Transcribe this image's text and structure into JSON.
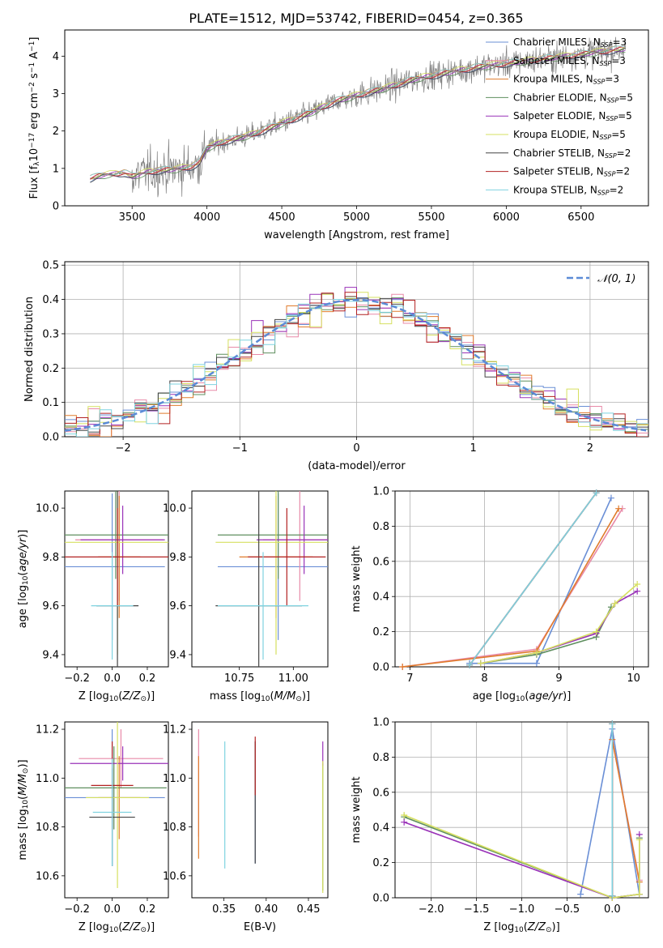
{
  "figure": {
    "title": "PLATE=1512, MJD=53742, FIBERID=0454, z=0.365"
  },
  "colors": {
    "Chabrier MILES": "#6a8fd6",
    "Salpeter MILES": "#e88aa8",
    "Kroupa MILES": "#e07b2c",
    "Chabrier ELODIE": "#5f8f5f",
    "Salpeter ELODIE": "#9932b8",
    "Kroupa ELODIE": "#d6e060",
    "Chabrier STELIB": "#444444",
    "Salpeter STELIB": "#b22222",
    "Kroupa STELIB": "#7fd3e0"
  },
  "chart_data": [
    {
      "id": "spectrum",
      "type": "line",
      "xlabel": "wavelength [Angstrom, rest frame]",
      "ylabel": "Flux [f_λ 10^-17 erg cm^-2 s^-1 A^-1]",
      "xlim": [
        3050,
        6950
      ],
      "ylim": [
        0,
        4.7
      ],
      "xticks": [
        3500,
        4000,
        4500,
        5000,
        5500,
        6000,
        6500
      ],
      "yticks": [
        0,
        1,
        2,
        3,
        4
      ],
      "grid": false,
      "legend_position": "right",
      "data_series": {
        "name": "data",
        "color": "#808080"
      },
      "model_anchors": {
        "x": [
          3220,
          3300,
          3450,
          3500,
          3600,
          3700,
          3800,
          3900,
          3950,
          4000,
          4100,
          4300,
          4500,
          4700,
          4862,
          5000,
          5200,
          5400,
          5600,
          5800,
          6000,
          6200,
          6400,
          6600,
          6800
        ],
        "y": [
          0.72,
          0.82,
          0.88,
          0.78,
          0.9,
          0.95,
          0.98,
          1.05,
          1.15,
          1.55,
          1.7,
          1.9,
          2.2,
          2.5,
          2.8,
          2.95,
          3.15,
          3.4,
          3.55,
          3.7,
          3.8,
          3.9,
          4.0,
          4.1,
          4.2
        ]
      },
      "series": [
        {
          "name": "Chabrier MILES, N_SSP=3",
          "label_main": "Chabrier MILES, N",
          "label_sub": "SSP",
          "label_end": "=3"
        },
        {
          "name": "Salpeter MILES, N_SSP=3",
          "label_main": "Salpeter MILES, N",
          "label_sub": "SSP",
          "label_end": "=3"
        },
        {
          "name": "Kroupa MILES, N_SSP=3",
          "label_main": "Kroupa MILES, N",
          "label_sub": "SSP",
          "label_end": "=3"
        },
        {
          "name": "Chabrier ELODIE, N_SSP=5",
          "label_main": "Chabrier ELODIE, N",
          "label_sub": "SSP",
          "label_end": "=5"
        },
        {
          "name": "Salpeter ELODIE, N_SSP=5",
          "label_main": "Salpeter ELODIE, N",
          "label_sub": "SSP",
          "label_end": "=5"
        },
        {
          "name": "Kroupa ELODIE, N_SSP=5",
          "label_main": "Kroupa ELODIE, N",
          "label_sub": "SSP",
          "label_end": "=5"
        },
        {
          "name": "Chabrier STELIB, N_SSP=2",
          "label_main": "Chabrier STELIB, N",
          "label_sub": "SSP",
          "label_end": "=2"
        },
        {
          "name": "Salpeter STELIB, N_SSP=2",
          "label_main": "Salpeter STELIB, N",
          "label_sub": "SSP",
          "label_end": "=2"
        },
        {
          "name": "Kroupa STELIB, N_SSP=2",
          "label_main": "Kroupa STELIB, N",
          "label_sub": "SSP",
          "label_end": "=2"
        }
      ]
    },
    {
      "id": "residuals",
      "type": "line",
      "xlabel": "(data-model)/error",
      "ylabel": "Normed distribution",
      "xlim": [
        -2.5,
        2.5
      ],
      "ylim": [
        0,
        0.51
      ],
      "xticks": [
        -2,
        -1,
        0,
        1,
        2
      ],
      "yticks": [
        0.0,
        0.1,
        0.2,
        0.3,
        0.4,
        0.5
      ],
      "grid": true,
      "legend_position": "top-right",
      "reference": {
        "name": "𝒩(0, 1)",
        "color": "#5b8bd6",
        "dashed": true
      }
    },
    {
      "id": "age_vs_Z",
      "type": "scatter",
      "xlabel": "Z [log10(Z/Z⊙)]",
      "ylabel": "age  [log10(age/yr)]",
      "xlim": [
        -0.27,
        0.32
      ],
      "ylim": [
        9.35,
        10.07
      ],
      "xticks": [
        -0.2,
        0.0,
        0.2
      ],
      "yticks": [
        9.4,
        9.6,
        9.8,
        10.0
      ],
      "errorbars": [
        {
          "model": "Chabrier MILES",
          "x": 0.0,
          "y": 9.76,
          "xerr": 0.3,
          "yerr": 0.3
        },
        {
          "model": "Salpeter MILES",
          "x": 0.04,
          "y": 9.87,
          "xerr": 0.25,
          "yerr": 0.25
        },
        {
          "model": "Kroupa MILES",
          "x": 0.04,
          "y": 9.8,
          "xerr": 0.12,
          "yerr": 0.25
        },
        {
          "model": "Chabrier ELODIE",
          "x": 0.02,
          "y": 9.89,
          "xerr": 0.3,
          "yerr": 0.18
        },
        {
          "model": "Salpeter ELODIE",
          "x": 0.06,
          "y": 9.87,
          "xerr": 0.24,
          "yerr": 0.14
        },
        {
          "model": "Kroupa ELODIE",
          "x": 0.03,
          "y": 9.86,
          "xerr": 0.3,
          "yerr": 0.46
        },
        {
          "model": "Chabrier STELIB",
          "x": 0.03,
          "y": 9.6,
          "xerr": 0.12,
          "yerr": 0.47
        },
        {
          "model": "Salpeter STELIB",
          "x": 0.03,
          "y": 9.8,
          "xerr": 0.3,
          "yerr": 0.2
        },
        {
          "model": "Kroupa STELIB",
          "x": 0.0,
          "y": 9.6,
          "xerr": 0.12,
          "yerr": 0.22
        }
      ]
    },
    {
      "id": "age_vs_mass",
      "type": "scatter",
      "xlabel": "mass [log10(M/M⊙)]",
      "ylabel": "",
      "xlim": [
        10.53,
        11.16
      ],
      "ylim": [
        9.35,
        10.07
      ],
      "xticks": [
        10.75,
        11.0
      ],
      "yticks": [
        9.4,
        9.6,
        9.8,
        10.0
      ],
      "errorbars": [
        {
          "model": "Chabrier MILES",
          "x": 10.93,
          "y": 9.76,
          "xerr": 0.28,
          "yerr": 0.3
        },
        {
          "model": "Salpeter MILES",
          "x": 11.03,
          "y": 9.87,
          "xerr": 0.17,
          "yerr": 0.25
        },
        {
          "model": "Kroupa MILES",
          "x": 10.92,
          "y": 9.8,
          "xerr": 0.17,
          "yerr": 0.25
        },
        {
          "model": "Chabrier ELODIE",
          "x": 10.93,
          "y": 9.89,
          "xerr": 0.28,
          "yerr": 0.18
        },
        {
          "model": "Salpeter ELODIE",
          "x": 11.05,
          "y": 9.87,
          "xerr": 0.22,
          "yerr": 0.14
        },
        {
          "model": "Kroupa ELODIE",
          "x": 10.92,
          "y": 9.86,
          "xerr": 0.28,
          "yerr": 0.46
        },
        {
          "model": "Chabrier STELIB",
          "x": 10.84,
          "y": 9.6,
          "xerr": 0.2,
          "yerr": 0.47
        },
        {
          "model": "Salpeter STELIB",
          "x": 10.97,
          "y": 9.8,
          "xerr": 0.18,
          "yerr": 0.2
        },
        {
          "model": "Kroupa STELIB",
          "x": 10.86,
          "y": 9.6,
          "xerr": 0.21,
          "yerr": 0.22
        }
      ]
    },
    {
      "id": "weight_vs_age",
      "type": "line",
      "xlabel": "age  [log10(age/yr)]",
      "ylabel": "mass weight",
      "xlim": [
        6.8,
        10.2
      ],
      "ylim": [
        0,
        1.0
      ],
      "xticks": [
        7,
        8,
        9,
        10
      ],
      "yticks": [
        0.0,
        0.2,
        0.4,
        0.6,
        0.8,
        1.0
      ],
      "grid": true,
      "series": [
        {
          "model": "Chabrier MILES",
          "x": [
            7.8,
            8.7,
            9.7
          ],
          "y": [
            0.02,
            0.02,
            0.96
          ]
        },
        {
          "model": "Salpeter MILES",
          "x": [
            6.9,
            8.7,
            9.85
          ],
          "y": [
            0.0,
            0.1,
            0.9
          ]
        },
        {
          "model": "Kroupa MILES",
          "x": [
            6.9,
            8.7,
            9.8
          ],
          "y": [
            0.0,
            0.09,
            0.9
          ]
        },
        {
          "model": "Chabrier ELODIE",
          "x": [
            7.95,
            8.7,
            9.5,
            9.7
          ],
          "y": [
            0.02,
            0.07,
            0.17,
            0.34
          ]
        },
        {
          "model": "Salpeter ELODIE",
          "x": [
            7.95,
            8.7,
            9.5,
            9.75,
            10.05
          ],
          "y": [
            0.02,
            0.08,
            0.19,
            0.36,
            0.43
          ]
        },
        {
          "model": "Kroupa ELODIE",
          "x": [
            7.95,
            8.7,
            9.5,
            9.75,
            10.05
          ],
          "y": [
            0.02,
            0.08,
            0.2,
            0.36,
            0.47
          ]
        },
        {
          "model": "Chabrier STELIB",
          "x": [
            7.8,
            9.5
          ],
          "y": [
            0.01,
            0.99
          ]
        },
        {
          "model": "Salpeter STELIB",
          "x": [
            7.8,
            9.5
          ],
          "y": [
            0.01,
            0.99
          ]
        },
        {
          "model": "Kroupa STELIB",
          "x": [
            7.8,
            9.5
          ],
          "y": [
            0.01,
            0.99
          ]
        }
      ]
    },
    {
      "id": "mass_vs_Z",
      "type": "scatter",
      "xlabel": "Z [log10(Z/Z⊙)]",
      "ylabel": "mass [log10(M/M⊙)]",
      "xlim": [
        -0.27,
        0.32
      ],
      "ylim": [
        10.51,
        11.23
      ],
      "xticks": [
        -0.2,
        0.0,
        0.2
      ],
      "yticks": [
        10.6,
        10.8,
        11.0,
        11.2
      ],
      "errorbars": [
        {
          "model": "Chabrier MILES",
          "x": 0.0,
          "y": 10.92,
          "xerr": 0.3,
          "yerr": 0.28
        },
        {
          "model": "Salpeter MILES",
          "x": 0.05,
          "y": 11.08,
          "xerr": 0.24,
          "yerr": 0.12
        },
        {
          "model": "Kroupa MILES",
          "x": 0.04,
          "y": 10.92,
          "xerr": 0.12,
          "yerr": 0.17
        },
        {
          "model": "Chabrier ELODIE",
          "x": 0.01,
          "y": 10.96,
          "xerr": 0.3,
          "yerr": 0.17
        },
        {
          "model": "Salpeter ELODIE",
          "x": 0.06,
          "y": 11.06,
          "xerr": 0.3,
          "yerr": 0.07
        },
        {
          "model": "Kroupa ELODIE",
          "x": 0.03,
          "y": 10.92,
          "xerr": 0.18,
          "yerr": 0.37
        },
        {
          "model": "Chabrier STELIB",
          "x": 0.0,
          "y": 10.84,
          "xerr": 0.13,
          "yerr": 0.2
        },
        {
          "model": "Salpeter STELIB",
          "x": 0.0,
          "y": 10.97,
          "xerr": 0.12,
          "yerr": 0.18
        },
        {
          "model": "Kroupa STELIB",
          "x": 0.0,
          "y": 10.86,
          "xerr": 0.11,
          "yerr": 0.22
        }
      ]
    },
    {
      "id": "mass_vs_EBV",
      "type": "scatter",
      "xlabel": "E(B-V)",
      "ylabel": "",
      "xlim": [
        0.312,
        0.473
      ],
      "ylim": [
        10.51,
        11.23
      ],
      "xticks": [
        0.35,
        0.4,
        0.45
      ],
      "yticks": [
        10.6,
        10.8,
        11.0,
        11.2
      ],
      "errorbars": [
        {
          "model": "Chabrier MILES",
          "x": 0.387,
          "y": 10.9,
          "xerr": 0.0,
          "yerr": 0.25
        },
        {
          "model": "Salpeter MILES",
          "x": 0.32,
          "y": 10.98,
          "xerr": 0.0,
          "yerr": 0.22
        },
        {
          "model": "Kroupa MILES",
          "x": 0.32,
          "y": 10.88,
          "xerr": 0.0,
          "yerr": 0.21
        },
        {
          "model": "Chabrier ELODIE",
          "x": 0.467,
          "y": 10.8,
          "xerr": 0.0,
          "yerr": 0.26
        },
        {
          "model": "Salpeter ELODIE",
          "x": 0.467,
          "y": 11.1,
          "xerr": 0.0,
          "yerr": 0.05
        },
        {
          "model": "Kroupa ELODIE",
          "x": 0.467,
          "y": 10.8,
          "xerr": 0.0,
          "yerr": 0.27
        },
        {
          "model": "Chabrier STELIB",
          "x": 0.387,
          "y": 10.9,
          "xerr": 0.0,
          "yerr": 0.25
        },
        {
          "model": "Salpeter STELIB",
          "x": 0.387,
          "y": 11.05,
          "xerr": 0.0,
          "yerr": 0.12
        },
        {
          "model": "Kroupa STELIB",
          "x": 0.351,
          "y": 10.89,
          "xerr": 0.0,
          "yerr": 0.26
        }
      ]
    },
    {
      "id": "weight_vs_Z",
      "type": "line",
      "xlabel": "Z [log10(Z/Z⊙)]",
      "ylabel": "mass weight",
      "xlim": [
        -2.4,
        0.4
      ],
      "ylim": [
        0,
        1.0
      ],
      "xticks": [
        -2.0,
        -1.5,
        -1.0,
        -0.5,
        0.0
      ],
      "yticks": [
        0.0,
        0.2,
        0.4,
        0.6,
        0.8,
        1.0
      ],
      "grid": true,
      "series": [
        {
          "model": "Chabrier MILES",
          "x": [
            -0.35,
            0.0,
            0.3
          ],
          "y": [
            0.02,
            0.96,
            0.02
          ]
        },
        {
          "model": "Salpeter MILES",
          "x": [
            0.0,
            0.0,
            0.3
          ],
          "y": [
            0.0,
            0.9,
            0.1
          ]
        },
        {
          "model": "Kroupa MILES",
          "x": [
            0.0,
            0.0,
            0.3
          ],
          "y": [
            0.0,
            0.9,
            0.09
          ]
        },
        {
          "model": "Chabrier ELODIE",
          "x": [
            -2.3,
            0.0,
            0.3,
            0.3
          ],
          "y": [
            0.46,
            0.0,
            0.02,
            0.34
          ]
        },
        {
          "model": "Salpeter ELODIE",
          "x": [
            -2.3,
            0.0,
            0.3,
            0.3
          ],
          "y": [
            0.43,
            0.0,
            0.02,
            0.36
          ]
        },
        {
          "model": "Kroupa ELODIE",
          "x": [
            -2.3,
            0.0,
            0.3,
            0.3
          ],
          "y": [
            0.47,
            0.0,
            0.02,
            0.33
          ]
        },
        {
          "model": "Chabrier STELIB",
          "x": [
            0.0,
            0.0
          ],
          "y": [
            0.01,
            0.99
          ]
        },
        {
          "model": "Salpeter STELIB",
          "x": [
            0.0,
            0.0
          ],
          "y": [
            0.01,
            0.99
          ]
        },
        {
          "model": "Kroupa STELIB",
          "x": [
            0.0,
            0.0
          ],
          "y": [
            0.01,
            0.99
          ]
        }
      ]
    }
  ]
}
